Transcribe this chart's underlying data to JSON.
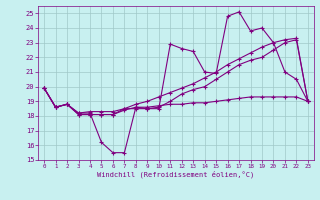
{
  "xlabel": "Windchill (Refroidissement éolien,°C)",
  "background_color": "#c8f0f0",
  "grid_color": "#a0c8c8",
  "line_color": "#800080",
  "xlim": [
    -0.5,
    23.5
  ],
  "ylim": [
    15,
    25.5
  ],
  "xticks": [
    0,
    1,
    2,
    3,
    4,
    5,
    6,
    7,
    8,
    9,
    10,
    11,
    12,
    13,
    14,
    15,
    16,
    17,
    18,
    19,
    20,
    21,
    22,
    23
  ],
  "yticks": [
    15,
    16,
    17,
    18,
    19,
    20,
    21,
    22,
    23,
    24,
    25
  ],
  "line1_x": [
    0,
    1,
    2,
    3,
    4,
    5,
    6,
    7,
    8,
    9,
    10,
    11,
    12,
    13,
    14,
    15,
    16,
    17,
    18,
    19,
    20,
    21,
    22,
    23
  ],
  "line1_y": [
    19.9,
    18.6,
    18.8,
    18.2,
    18.2,
    16.2,
    15.5,
    15.5,
    18.6,
    18.5,
    18.5,
    22.9,
    22.6,
    22.4,
    21.0,
    20.9,
    24.8,
    25.1,
    23.8,
    24.0,
    23.0,
    21.0,
    20.5,
    19.0
  ],
  "line2_x": [
    0,
    1,
    2,
    3,
    4,
    5,
    6,
    7,
    8,
    9,
    10,
    11,
    12,
    13,
    14,
    15,
    16,
    17,
    18,
    19,
    20,
    21,
    22,
    23
  ],
  "line2_y": [
    19.9,
    18.6,
    18.8,
    18.1,
    18.1,
    18.1,
    18.1,
    18.4,
    18.6,
    18.6,
    18.7,
    18.8,
    18.8,
    18.9,
    18.9,
    19.0,
    19.1,
    19.2,
    19.3,
    19.3,
    19.3,
    19.3,
    19.3,
    19.0
  ],
  "line3_x": [
    0,
    1,
    2,
    3,
    4,
    5,
    6,
    7,
    8,
    9,
    10,
    11,
    12,
    13,
    14,
    15,
    16,
    17,
    18,
    19,
    20,
    21,
    22,
    23
  ],
  "line3_y": [
    19.9,
    18.6,
    18.8,
    18.2,
    18.3,
    18.3,
    18.3,
    18.5,
    18.8,
    19.0,
    19.3,
    19.6,
    19.9,
    20.2,
    20.6,
    21.0,
    21.5,
    21.9,
    22.3,
    22.7,
    23.0,
    23.2,
    23.3,
    19.0
  ],
  "line4_x": [
    0,
    1,
    2,
    3,
    4,
    5,
    6,
    7,
    8,
    9,
    10,
    11,
    12,
    13,
    14,
    15,
    16,
    17,
    18,
    19,
    20,
    21,
    22,
    23
  ],
  "line4_y": [
    19.9,
    18.6,
    18.8,
    18.1,
    18.1,
    18.1,
    18.1,
    18.5,
    18.5,
    18.5,
    18.6,
    19.0,
    19.5,
    19.8,
    20.0,
    20.5,
    21.0,
    21.5,
    21.8,
    22.0,
    22.5,
    23.0,
    23.2,
    19.0
  ]
}
